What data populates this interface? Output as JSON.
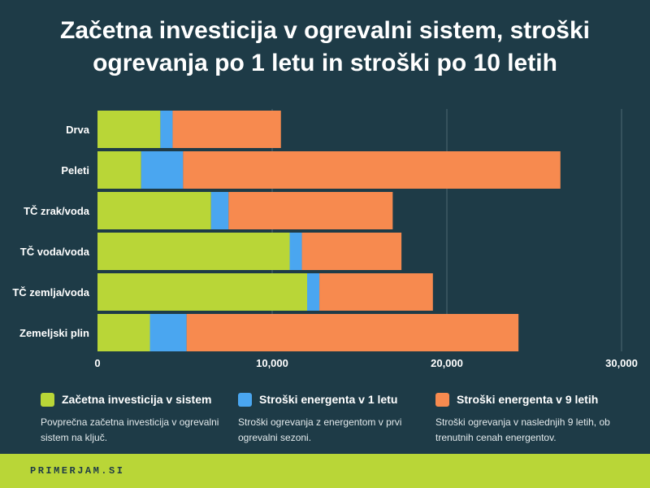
{
  "title": {
    "line1": "Začetna investicija v ogrevalni sistem, stroški",
    "line2": "ogrevanja po 1 letu in stroški po 10 letih"
  },
  "colors": {
    "background": "#1e3b47",
    "investment": "#b9d637",
    "year1": "#4aa6f0",
    "year9": "#f78a4f",
    "footer": "#b9d637",
    "grid": "#4f6873"
  },
  "chart_data": {
    "type": "bar",
    "orientation": "horizontal",
    "stacked": true,
    "title": "Začetna investicija v ogrevalni sistem, stroški ogrevanja po 1 letu in stroški po 10 letih",
    "categories": [
      "Drva",
      "Peleti",
      "TČ zrak/voda",
      "TČ voda/voda",
      "TČ zemlja/voda",
      "Zemeljski plin"
    ],
    "series": [
      {
        "name": "Začetna investicija v sistem",
        "color": "#b9d637",
        "values": [
          3600,
          2500,
          6500,
          11000,
          12000,
          3000
        ]
      },
      {
        "name": "Stroški energenta v 1 letu",
        "color": "#4aa6f0",
        "values": [
          700,
          2400,
          1000,
          700,
          700,
          2100
        ]
      },
      {
        "name": "Stroški energenta v 9 letih",
        "color": "#f78a4f",
        "values": [
          6200,
          21600,
          9400,
          5700,
          6500,
          19000
        ]
      }
    ],
    "xlim": [
      0,
      30000
    ],
    "xticks": [
      0,
      10000,
      20000,
      30000
    ],
    "xtick_labels": [
      "0",
      "10,000",
      "20,000",
      "30,000"
    ],
    "grid": true,
    "legend_position": "bottom"
  },
  "legend": [
    {
      "label": "Začetna investicija v sistem",
      "description": "Povprečna začetna investicija v ogrevalni sistem na ključ.",
      "color": "#b9d637"
    },
    {
      "label": "Stroški energenta v 1 letu",
      "description": "Stroški ogrevanja z energentom v prvi ogrevalni sezoni.",
      "color": "#4aa6f0"
    },
    {
      "label": "Stroški energenta v 9 letih",
      "description": "Stroški ogrevanja v naslednjih 9 letih, ob trenutnih cenah energentov.",
      "color": "#f78a4f"
    }
  ],
  "footer": {
    "brand": "PRIMERJAM.SI"
  }
}
